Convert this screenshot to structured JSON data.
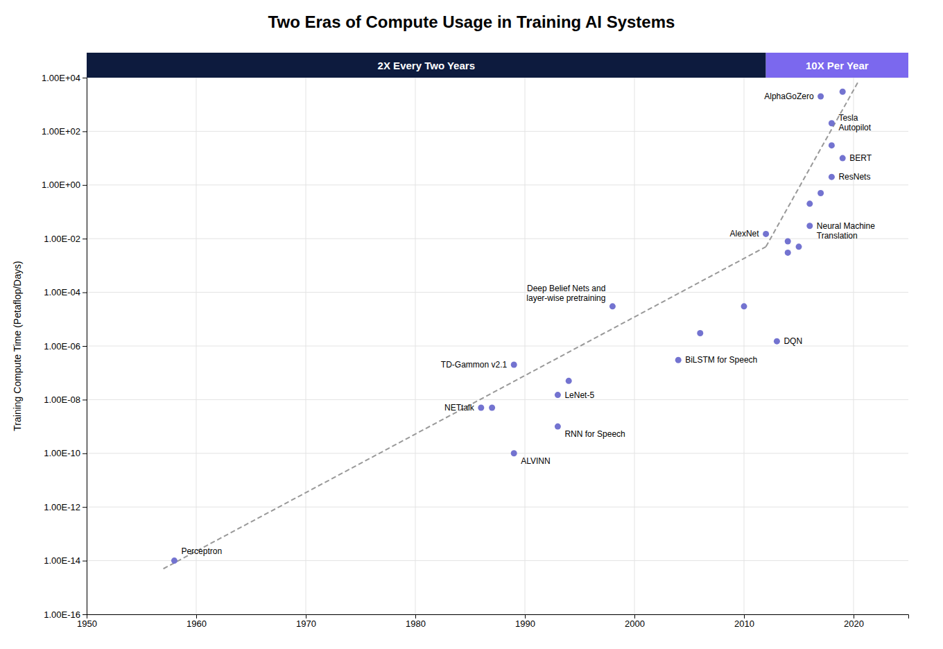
{
  "chart_data": {
    "type": "scatter",
    "title": "Two Eras of Compute Usage in Training AI Systems",
    "y_label": "Training Compute Time (Petaflop/Days)",
    "log": "y",
    "grid": true,
    "color": "#6b6bcd",
    "marker": "circle",
    "xlim": [
      1950,
      2025
    ],
    "xticks": [
      1950,
      1960,
      1970,
      1980,
      1990,
      2000,
      2010,
      2020
    ],
    "ylim": [
      1e-16,
      10000.0
    ],
    "yticks": [
      {
        "value": 1e-16,
        "label": "1.00E-16"
      },
      {
        "value": 1e-14,
        "label": "1.00E-14"
      },
      {
        "value": 1e-12,
        "label": "1.00E-12"
      },
      {
        "value": 1e-10,
        "label": "1.00E-10"
      },
      {
        "value": 1e-08,
        "label": "1.00E-08"
      },
      {
        "value": 1e-06,
        "label": "1.00E-06"
      },
      {
        "value": 0.0001,
        "label": "1.00E-04"
      },
      {
        "value": 0.01,
        "label": "1.00E-02"
      },
      {
        "value": 1,
        "label": "1.00E+00"
      },
      {
        "value": 100,
        "label": "1.00E+02"
      },
      {
        "value": 10000,
        "label": "1.00E+04"
      }
    ],
    "x": [
      1958,
      1986,
      1987,
      1989,
      1989,
      1993,
      1993,
      1994,
      1998,
      2004,
      2006,
      2010,
      2012,
      2013,
      2014,
      2014,
      2015,
      2016,
      2016,
      2017,
      2017,
      2018,
      2018,
      2018,
      2019,
      2019
    ],
    "values": [
      1e-14,
      5e-09,
      5e-09,
      2e-07,
      1e-10,
      1.5e-08,
      1e-09,
      5e-08,
      3e-05,
      3e-07,
      3e-06,
      3e-05,
      0.015,
      1.5e-06,
      0.003,
      0.008,
      0.005,
      0.03,
      0.2,
      0.5,
      2000.0,
      200.0,
      30.0,
      2.0,
      3000.0,
      10.0
    ],
    "labels": [
      "Perceptron",
      "NETtalk",
      null,
      "TD-Gammon v2.1",
      "ALVINN",
      "LeNet-5",
      "RNN for Speech",
      null,
      "Deep Belief Nets and\nlayer-wise pretraining",
      "BiLSTM for Speech",
      null,
      null,
      "AlexNet",
      "DQN",
      null,
      null,
      null,
      "Neural Machine\nTranslation",
      null,
      null,
      "AlphaGoZero",
      "Tesla\nAutopilot",
      null,
      "ResNets",
      null,
      "BERT"
    ],
    "trend_lines": [
      {
        "x": [
          1957,
          2012
        ],
        "values": [
          5e-15,
          0.005
        ],
        "color": "#999999",
        "line_style": "dashed"
      },
      {
        "x": [
          2012,
          2020.5
        ],
        "values": [
          0.005,
          8000.0
        ],
        "color": "#999999",
        "line_style": "dashed"
      }
    ],
    "eras": [
      {
        "label": "2X Every Two Years",
        "x": [
          1950,
          2012
        ],
        "color": "#0d1b3e"
      },
      {
        "label": "10X Per Year",
        "x": [
          2012,
          2025
        ],
        "color": "#7b68ee"
      }
    ]
  }
}
